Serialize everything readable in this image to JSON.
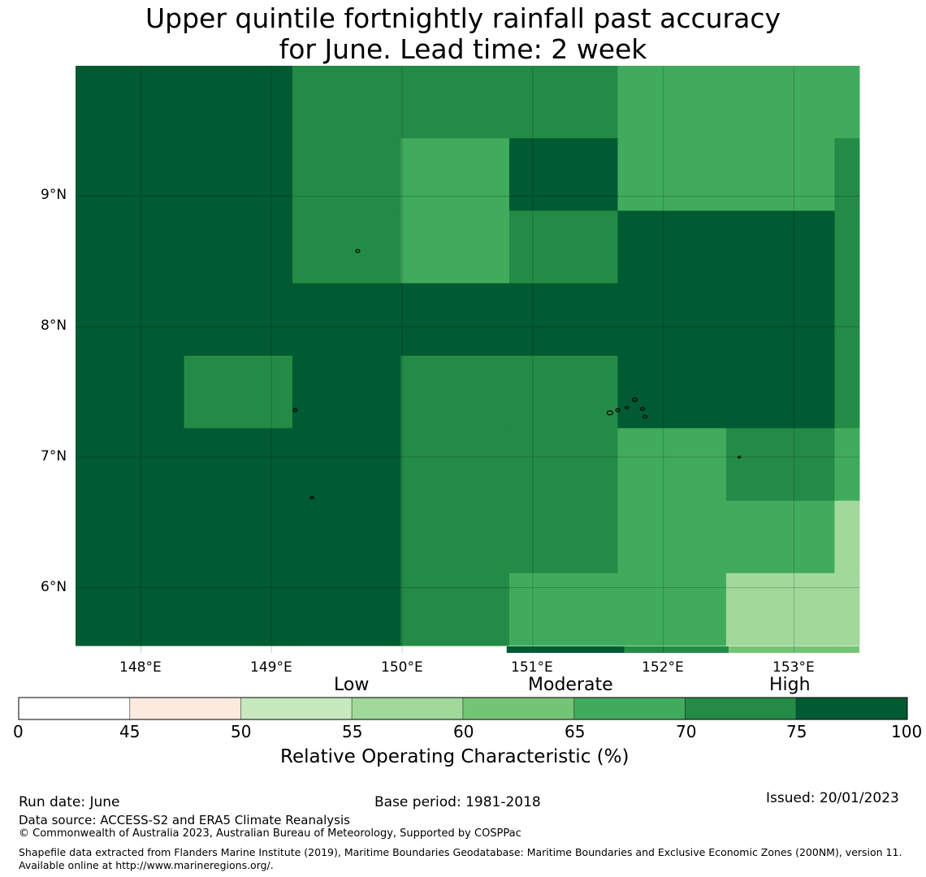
{
  "title_line1": "Upper quintile fortnightly rainfall past accuracy",
  "title_line2": "for June. Lead time: 2 week",
  "map": {
    "lon_range": [
      147.5,
      153.5
    ],
    "lat_range": [
      5.5,
      10.0
    ],
    "cell_size_deg": 0.83,
    "lon_ticks": [
      "148°E",
      "149°E",
      "150°E",
      "151°E",
      "152°E",
      "153°E"
    ],
    "lat_ticks": [
      "9°N",
      "8°N",
      "7°N",
      "6°N"
    ],
    "grid": true,
    "cells": [
      [
        80,
        80,
        73,
        73,
        73,
        67,
        67,
        67
      ],
      [
        80,
        80,
        73,
        67,
        80,
        67,
        67,
        73
      ],
      [
        80,
        80,
        73,
        67,
        73,
        80,
        80,
        73
      ],
      [
        80,
        80,
        80,
        80,
        80,
        80,
        80,
        73
      ],
      [
        80,
        73,
        80,
        73,
        73,
        80,
        80,
        73
      ],
      [
        80,
        80,
        80,
        73,
        73,
        67,
        73,
        67
      ],
      [
        80,
        80,
        80,
        73,
        73,
        67,
        67,
        58
      ],
      [
        80,
        80,
        80,
        73,
        67,
        67,
        58,
        58
      ]
    ],
    "bottom_strip": [
      {
        "lon": [
          150.8,
          151.7
        ],
        "value": 80
      },
      {
        "lon": [
          151.7,
          152.5
        ],
        "value": 73
      },
      {
        "lon": [
          152.5,
          153.5
        ],
        "value": 62
      }
    ]
  },
  "colorbar": {
    "boundaries": [
      0,
      45,
      50,
      55,
      60,
      65,
      70,
      75,
      100
    ],
    "tick_labels": [
      "0",
      "45",
      "50",
      "55",
      "60",
      "65",
      "70",
      "75",
      "100"
    ],
    "colors": [
      "#ffffff",
      "#fee9df",
      "#c7e9c0",
      "#a1d99b",
      "#74c476",
      "#41ab5d",
      "#238b45",
      "#005a32"
    ],
    "categories": [
      "Low",
      "Moderate",
      "High"
    ],
    "title": "Relative Operating Characteristic (%)"
  },
  "footer": {
    "run_date": "Run date: June",
    "base_period": "Base period: 1981-2018",
    "issued": "Issued: 20/01/2023",
    "data_source": "Data source: ACCESS-S2 and ERA5 Climate Reanalysis",
    "copyright": "© Commonwealth of Australia 2023, Australian Bureau of Meteorology, Supported by COSPPac",
    "shapefile": "Shapefile data extracted from Flanders Marine Institute (2019), Maritime Boundaries Geodatabase: Maritime Boundaries and Exclusive Economic Zones (200NM), version 11. Available online at http://www.marineregions.org/."
  }
}
